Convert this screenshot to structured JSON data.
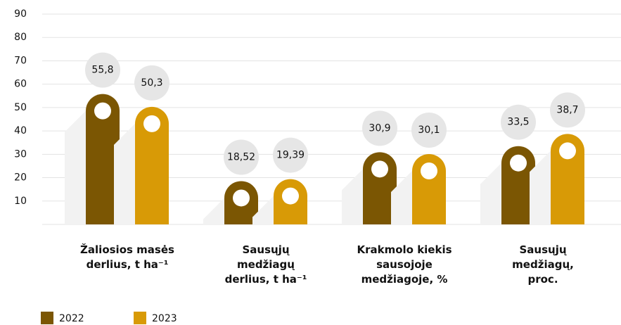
{
  "chart_data": {
    "type": "bar",
    "categories": [
      "Žaliosios masės\nderlius, t ha⁻¹",
      "Sausųjų\nmedžiagų\nderlius, t ha⁻¹",
      "Krakmolo kiekis\nsausojoje\nmedžiagoje, %",
      "Sausųjų\nmedžiagų,\nproc."
    ],
    "series": [
      {
        "name": "2022",
        "color": "#7b5603",
        "values": [
          55.8,
          18.52,
          30.9,
          33.5
        ],
        "value_labels": [
          "55,8",
          "18,52",
          "30,9",
          "33,5"
        ]
      },
      {
        "name": "2023",
        "color": "#d89a06",
        "values": [
          50.3,
          19.39,
          30.1,
          38.7
        ],
        "value_labels": [
          "50,3",
          "19,39",
          "30,1",
          "38,7"
        ]
      }
    ],
    "ylim": [
      0,
      90
    ],
    "yticks": [
      10,
      20,
      30,
      40,
      50,
      60,
      70,
      80,
      90
    ],
    "grid": true,
    "legend": "bottom-left"
  }
}
